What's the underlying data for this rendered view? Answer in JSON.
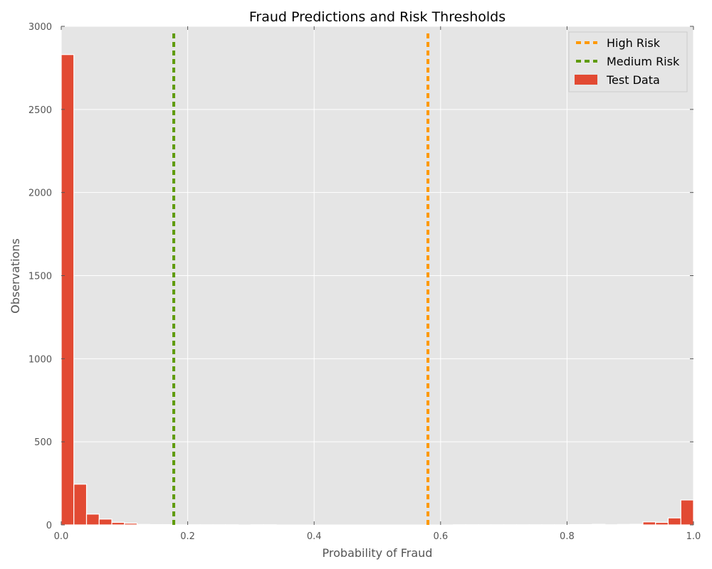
{
  "chart_data": {
    "type": "bar",
    "title": "Fraud Predictions and Risk Thresholds",
    "xlabel": "Probability of Fraud",
    "ylabel": "Observations",
    "xlim": [
      0,
      1
    ],
    "ylim": [
      0,
      3000
    ],
    "xticks": [
      "0.0",
      "0.2",
      "0.4",
      "0.6",
      "0.8",
      "1.0"
    ],
    "yticks": [
      "0",
      "500",
      "1000",
      "1500",
      "2000",
      "2500",
      "3000"
    ],
    "grid": true,
    "legend_position": "top-right",
    "histogram": {
      "name": "Test Data",
      "color": "#e24a33",
      "bin_width": 0.02,
      "bin_starts": [
        0.0,
        0.02,
        0.04,
        0.06,
        0.08,
        0.1,
        0.12,
        0.14,
        0.16,
        0.18,
        0.2,
        0.22,
        0.24,
        0.26,
        0.28,
        0.3,
        0.32,
        0.34,
        0.36,
        0.38,
        0.4,
        0.42,
        0.44,
        0.46,
        0.48,
        0.5,
        0.52,
        0.54,
        0.56,
        0.58,
        0.6,
        0.62,
        0.64,
        0.66,
        0.68,
        0.7,
        0.72,
        0.74,
        0.76,
        0.78,
        0.8,
        0.82,
        0.84,
        0.86,
        0.88,
        0.9,
        0.92,
        0.94,
        0.96,
        0.98
      ],
      "counts": [
        2830,
        245,
        65,
        35,
        15,
        10,
        3,
        2,
        2,
        1,
        1,
        1,
        1,
        1,
        0,
        1,
        1,
        0,
        0,
        0,
        0,
        0,
        0,
        0,
        0,
        0,
        0,
        0,
        0,
        0,
        0,
        1,
        1,
        1,
        1,
        1,
        1,
        1,
        1,
        1,
        2,
        2,
        4,
        1,
        3,
        4,
        18,
        15,
        42,
        150
      ]
    },
    "thresholds": [
      {
        "name": "High Risk",
        "x": 0.58,
        "color": "#ff9900",
        "style": "dashed"
      },
      {
        "name": "Medium Risk",
        "x": 0.178,
        "color": "#5f9b0c",
        "style": "dashed"
      }
    ],
    "threshold_top": 2960
  },
  "colors": {
    "plot_background": "#e5e5e5",
    "grid": "#ffffff",
    "text": "#555555",
    "title_text": "#000000"
  }
}
